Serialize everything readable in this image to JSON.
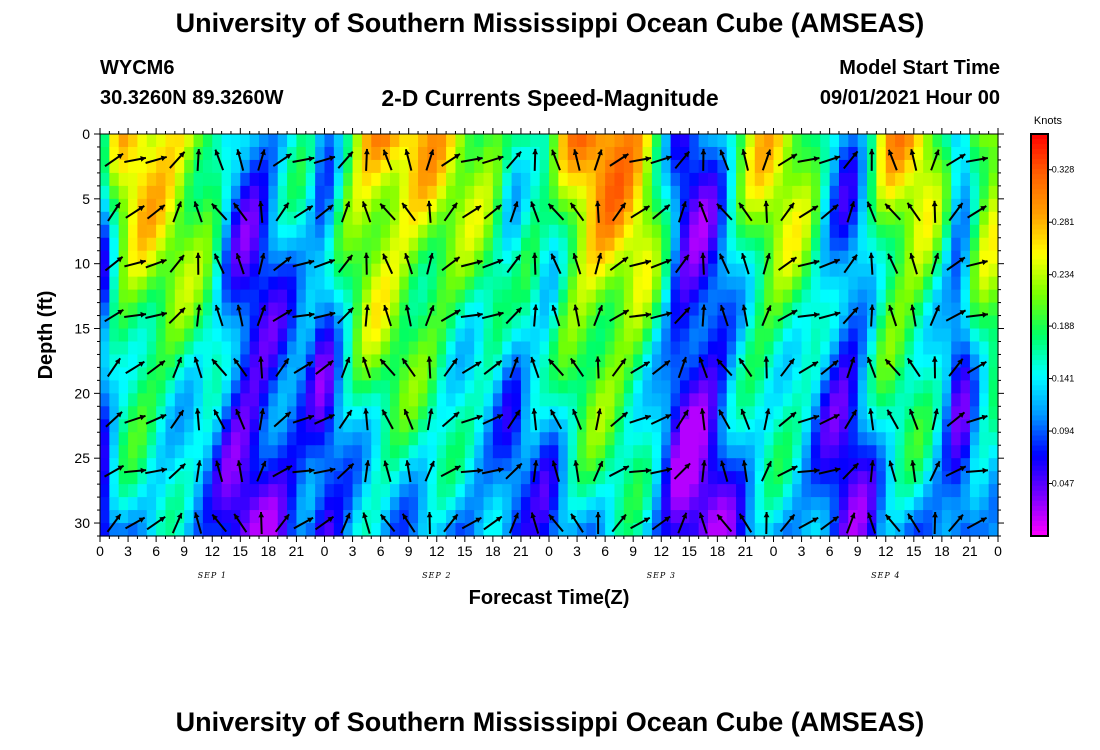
{
  "header": {
    "title_top": "University of Southern Mississippi Ocean Cube (AMSEAS)",
    "title_bottom": "University of Southern Mississippi Ocean Cube (AMSEAS)",
    "station": "WYCM6",
    "coords": "30.3260N  89.3260W",
    "subtitle": "2-D Currents Speed-Magnitude",
    "model_label": "Model Start Time",
    "model_time": "09/01/2021 Hour 00"
  },
  "chart_data": {
    "type": "heatmap",
    "title": "2-D Currents Speed-Magnitude",
    "xlabel": "Forecast Time(Z)",
    "ylabel": "Depth (ft)",
    "xlim": [
      0,
      96
    ],
    "ylim": [
      31,
      0
    ],
    "x_tick_labels": [
      "0",
      "3",
      "6",
      "9",
      "12",
      "15",
      "18",
      "21",
      "0",
      "3",
      "6",
      "9",
      "12",
      "15",
      "18",
      "21",
      "0",
      "3",
      "6",
      "9",
      "12",
      "15",
      "18",
      "21",
      "0",
      "3",
      "6",
      "9",
      "12",
      "15",
      "18",
      "21",
      "0"
    ],
    "y_ticks": [
      0,
      5,
      10,
      15,
      20,
      25,
      30
    ],
    "day_labels": [
      {
        "text": "SEP 1",
        "hour": 12
      },
      {
        "text": "SEP 2",
        "hour": 36
      },
      {
        "text": "SEP 3",
        "hour": 60
      },
      {
        "text": "SEP 4",
        "hour": 84
      }
    ],
    "colorbar": {
      "units": "Knots",
      "ticks": [
        0.328,
        0.281,
        0.234,
        0.188,
        0.141,
        0.094,
        0.047
      ],
      "range": [
        0.0,
        0.36
      ]
    },
    "colors": [
      "#ff00ff",
      "#7a00ff",
      "#0000ff",
      "#0096ff",
      "#00ffff",
      "#00ff64",
      "#78ff00",
      "#ffff00",
      "#ffa000",
      "#ff6000",
      "#ff0000"
    ],
    "series": [
      {
        "name": "speed_profile_surface",
        "hours": [
          0,
          2,
          4,
          6,
          8,
          10,
          12,
          14,
          16,
          18,
          20,
          22,
          24,
          26,
          28,
          30,
          32,
          34,
          36,
          38,
          40,
          42,
          44,
          46,
          48,
          50,
          52,
          54,
          56,
          58,
          60,
          62,
          64,
          66,
          68,
          70,
          72,
          74,
          76,
          78,
          80,
          82,
          84,
          86,
          88,
          90,
          92,
          94,
          96
        ],
        "values": [
          0.1,
          0.25,
          0.28,
          0.27,
          0.26,
          0.24,
          0.22,
          0.12,
          0.08,
          0.1,
          0.14,
          0.16,
          0.1,
          0.2,
          0.27,
          0.29,
          0.28,
          0.27,
          0.26,
          0.24,
          0.23,
          0.22,
          0.16,
          0.2,
          0.18,
          0.26,
          0.3,
          0.31,
          0.3,
          0.28,
          0.2,
          0.08,
          0.07,
          0.1,
          0.18,
          0.24,
          0.26,
          0.25,
          0.22,
          0.14,
          0.1,
          0.16,
          0.26,
          0.27,
          0.26,
          0.2,
          0.1,
          0.24,
          0.27
        ]
      }
    ]
  }
}
